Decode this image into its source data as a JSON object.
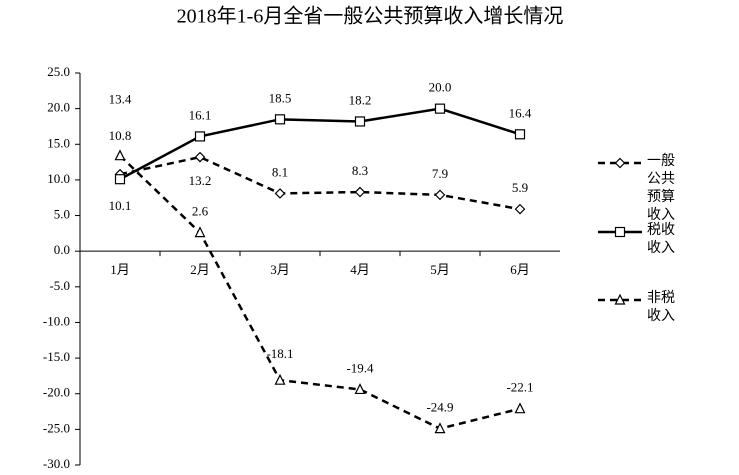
{
  "chart_data": {
    "type": "line",
    "title": "2018年1-6月全省一般公共预算收入增长情况",
    "categories": [
      "1月",
      "2月",
      "3月",
      "4月",
      "5月",
      "6月"
    ],
    "series": [
      {
        "name": "一般公共预算收入",
        "color": "#000000",
        "dash": "dashed",
        "marker": "diamond",
        "values": [
          10.8,
          13.2,
          8.1,
          8.3,
          7.9,
          5.9
        ]
      },
      {
        "name": "税收收入",
        "color": "#000000",
        "dash": "solid",
        "marker": "square",
        "values": [
          10.1,
          16.1,
          18.5,
          18.2,
          20.0,
          16.4
        ],
        "value_labels": [
          "10.1",
          "16.1",
          "18.5",
          "18.2",
          "20.0",
          "16.4"
        ]
      },
      {
        "name": "非税收入",
        "color": "#000000",
        "dash": "dashed",
        "marker": "triangle",
        "values": [
          13.4,
          2.6,
          -18.1,
          -19.4,
          -24.9,
          -22.1
        ]
      }
    ],
    "ylim": [
      -30,
      25
    ],
    "yticks": [
      {
        "value": -30,
        "label": "-30.0"
      },
      {
        "value": -25,
        "label": "-25.0"
      },
      {
        "value": -20,
        "label": "-20.0"
      },
      {
        "value": -15,
        "label": "-15.0"
      },
      {
        "value": -10,
        "label": "-10.0"
      },
      {
        "value": -5,
        "label": "-5.0"
      },
      {
        "value": 0,
        "label": "0.0"
      },
      {
        "value": 5,
        "label": "5.0"
      },
      {
        "value": 10,
        "label": "10.0"
      },
      {
        "value": 15,
        "label": "15.0"
      },
      {
        "value": 20,
        "label": "20.0"
      },
      {
        "value": 25,
        "label": "25.0"
      }
    ],
    "grid": false,
    "legend": "right"
  }
}
